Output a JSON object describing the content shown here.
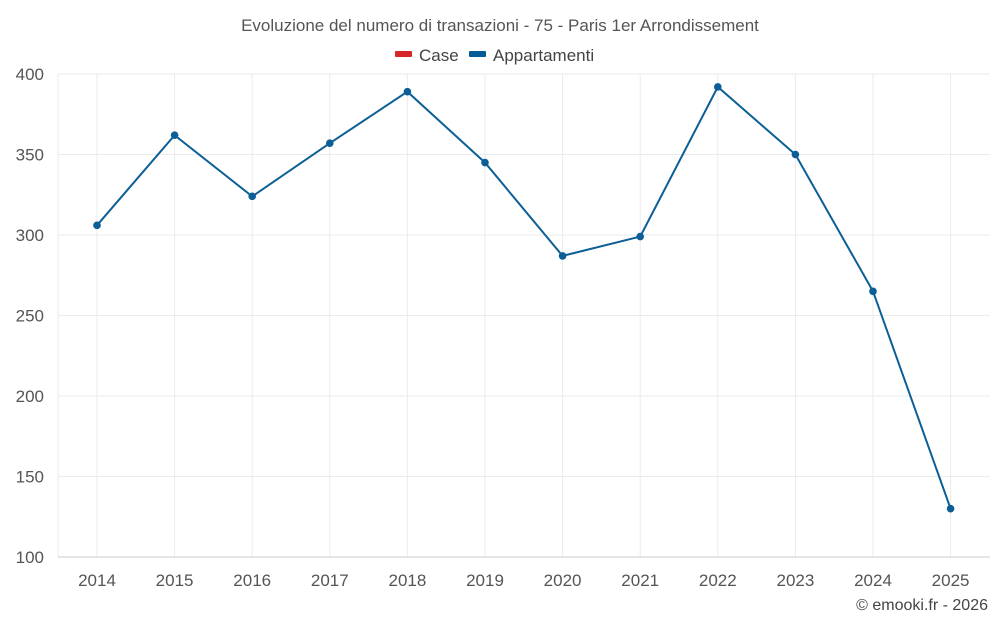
{
  "chart_data": {
    "type": "line",
    "title": "Evoluzione del numero di transazioni - 75 - Paris 1er Arrondissement",
    "categories": [
      "2014",
      "2015",
      "2016",
      "2017",
      "2018",
      "2019",
      "2020",
      "2021",
      "2022",
      "2023",
      "2024",
      "2025"
    ],
    "ylim": [
      100,
      400
    ],
    "yticks": [
      100,
      150,
      200,
      250,
      300,
      350,
      400
    ],
    "legend": [
      {
        "name": "Case",
        "color": "#d62728"
      },
      {
        "name": "Appartamenti",
        "color": "#005b96"
      }
    ],
    "series": [
      {
        "name": "Appartamenti",
        "color": "#0b5f96",
        "values": [
          306,
          362,
          324,
          357,
          389,
          345,
          287,
          299,
          392,
          350,
          265,
          130
        ]
      }
    ],
    "grid": true,
    "legend_position": "top-center"
  },
  "credit": "© emooki.fr - 2026"
}
